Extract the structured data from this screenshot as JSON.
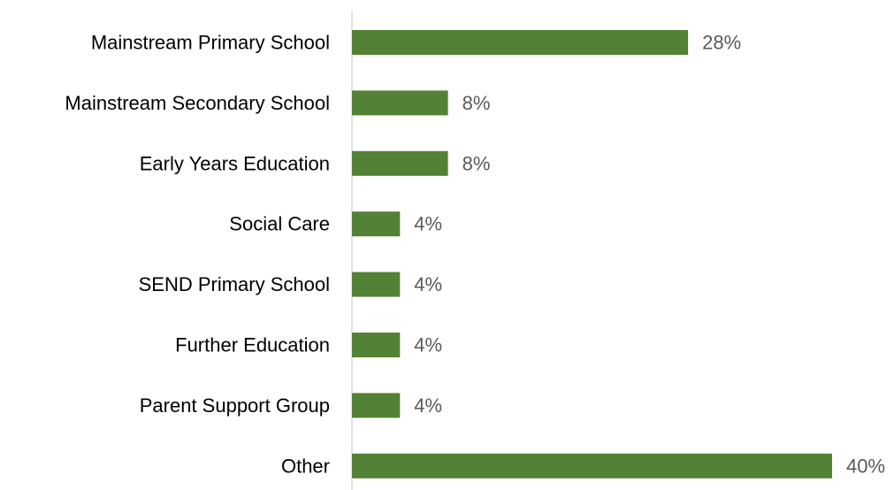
{
  "chart_data": {
    "type": "bar",
    "orientation": "horizontal",
    "categories": [
      "Mainstream Primary School",
      "Mainstream Secondary School",
      "Early Years Education",
      "Social Care",
      "SEND Primary School",
      "Further Education",
      "Parent Support Group",
      "Other"
    ],
    "values": [
      28,
      8,
      8,
      4,
      4,
      4,
      4,
      40
    ],
    "value_labels": [
      "28%",
      "8%",
      "8%",
      "4%",
      "4%",
      "4%",
      "4%",
      "40%"
    ],
    "unit": "%",
    "title": "",
    "xlabel": "",
    "ylabel": "",
    "xlim": [
      0,
      40
    ],
    "grid": false,
    "legend": "none",
    "bar_color": "#538135",
    "axis_color": "#d9d9d9",
    "label_color": "#000000",
    "value_label_color": "#595959"
  }
}
